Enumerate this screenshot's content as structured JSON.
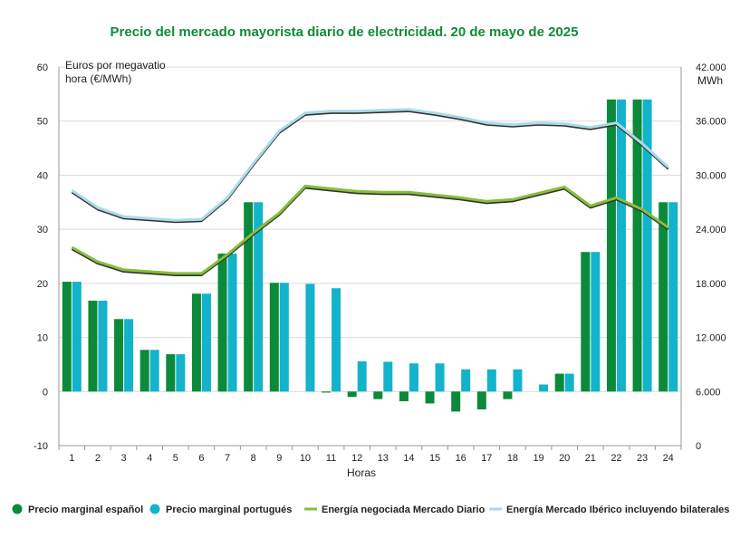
{
  "colors": {
    "es_bar": "#0a8a3a",
    "pt_bar": "#13b3cc",
    "mercado_diario_line": "#86bf3a",
    "iberico_line": "#a9dbe6",
    "shadow": "#333333",
    "title": "#128a3a",
    "grid": "#d9d9d9"
  },
  "chart_data": {
    "type": "bar",
    "title": "Precio del mercado mayorista diario de electricidad. 20 de mayo de 2025",
    "xlabel": "Horas",
    "ylabel_left": "Euros por megavatio hora (€/MWh)",
    "ylabel_right": "MWh",
    "ylim_left": [
      -10,
      60
    ],
    "ylim_right": [
      0,
      42000
    ],
    "yticks_left": [
      "-10",
      "0",
      "10",
      "20",
      "30",
      "40",
      "50",
      "60"
    ],
    "yticks_right": [
      "0",
      "6.000",
      "12.000",
      "18.000",
      "24.000",
      "30.000",
      "36.000",
      "42.000"
    ],
    "categories": [
      "1",
      "2",
      "3",
      "4",
      "5",
      "6",
      "7",
      "8",
      "9",
      "10",
      "11",
      "12",
      "13",
      "14",
      "15",
      "16",
      "17",
      "18",
      "19",
      "20",
      "21",
      "22",
      "23",
      "24"
    ],
    "grid": true,
    "legend_position": "bottom",
    "bar_series": [
      {
        "name": "Precio marginal español",
        "values": [
          20.3,
          16.8,
          13.4,
          7.7,
          6.9,
          18.1,
          25.5,
          35.0,
          20.1,
          0.0,
          -0.2,
          -1.0,
          -1.4,
          -1.8,
          -2.2,
          -3.7,
          -3.3,
          -1.4,
          0.0,
          3.3,
          25.8,
          54.0,
          54.0,
          35.0
        ]
      },
      {
        "name": "Precio marginal portugués",
        "values": [
          20.3,
          16.8,
          13.4,
          7.7,
          6.9,
          18.1,
          25.5,
          35.0,
          20.1,
          19.9,
          19.1,
          5.6,
          5.5,
          5.2,
          5.2,
          4.1,
          4.1,
          4.1,
          1.3,
          3.3,
          25.8,
          54.0,
          54.0,
          35.0
        ]
      }
    ],
    "line_series": [
      {
        "name": "Energía negociada Mercado Diario",
        "values": [
          22000,
          20400,
          19500,
          19300,
          19100,
          19100,
          21200,
          23600,
          25800,
          28800,
          28500,
          28200,
          28100,
          28100,
          27800,
          27500,
          27100,
          27300,
          28000,
          28700,
          26600,
          27500,
          26200,
          24200
        ]
      },
      {
        "name": "Energía Mercado Ibérico incluyendo bilaterales",
        "values": [
          28300,
          26400,
          25400,
          25200,
          25000,
          25100,
          27500,
          31300,
          34900,
          36900,
          37100,
          37100,
          37200,
          37300,
          36900,
          36400,
          35800,
          35600,
          35800,
          35700,
          35300,
          35800,
          33500,
          30900
        ]
      }
    ]
  }
}
